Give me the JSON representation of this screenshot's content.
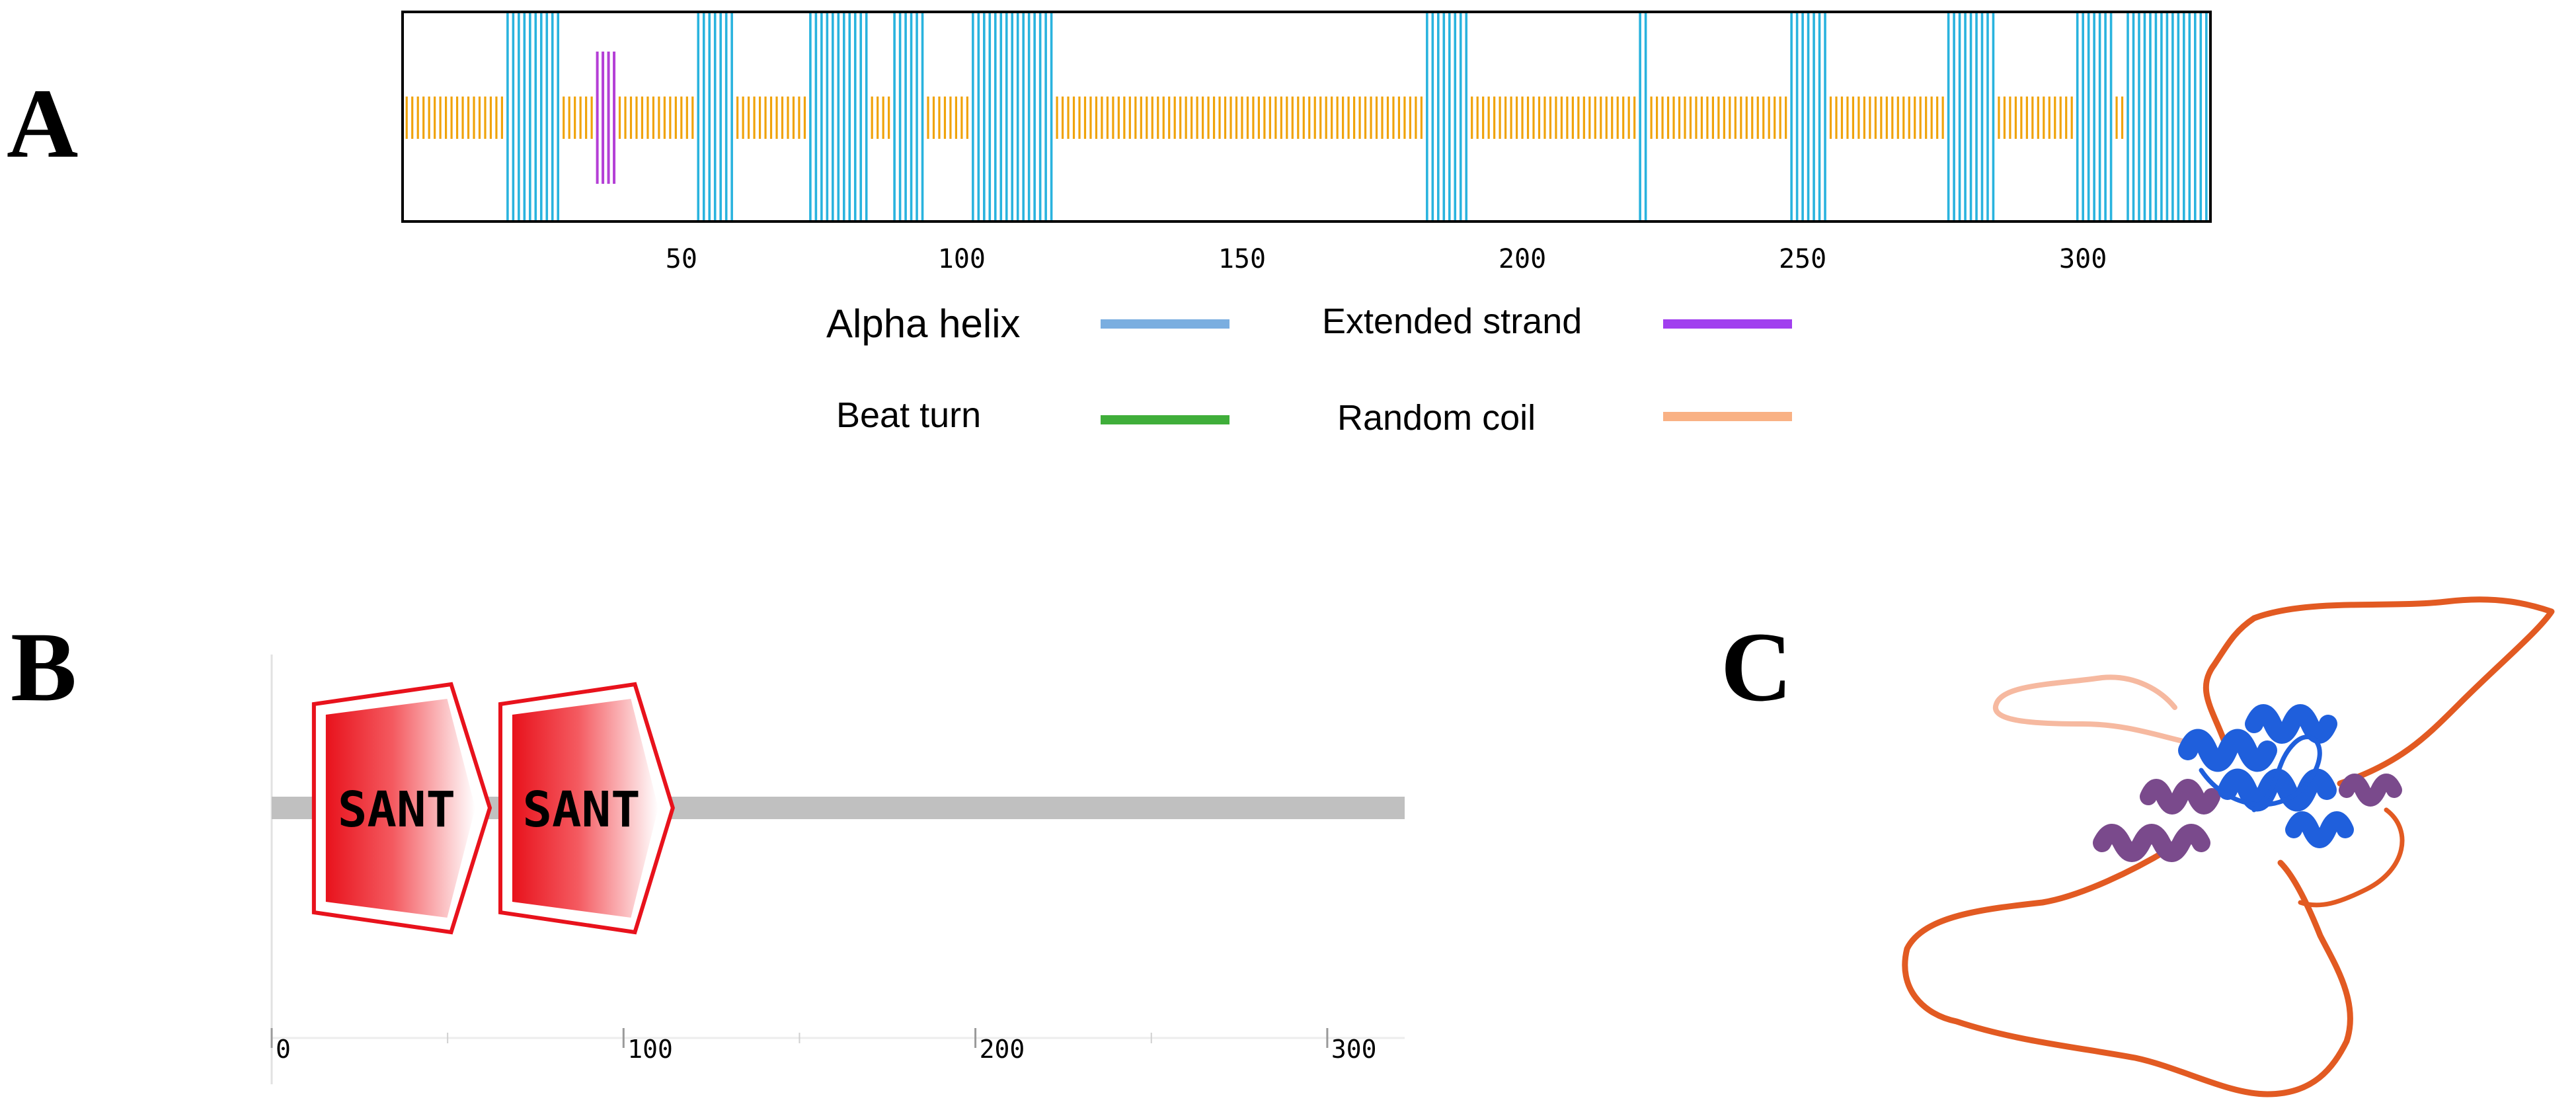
{
  "panels": {
    "a": "A",
    "b": "B",
    "c": "C"
  },
  "secondary_structure": {
    "sequence_length": 322,
    "axis_ticks": [
      50,
      100,
      150,
      200,
      250,
      300
    ],
    "helix_ranges": [
      [
        19,
        28
      ],
      [
        53,
        59
      ],
      [
        73,
        83
      ],
      [
        88,
        93
      ],
      [
        102,
        116
      ],
      [
        183,
        190
      ],
      [
        221,
        222
      ],
      [
        248,
        254
      ],
      [
        276,
        284
      ],
      [
        299,
        305
      ],
      [
        308,
        322
      ]
    ],
    "strand_ranges": [
      [
        35,
        38
      ]
    ],
    "coil_ranges": [
      [
        1,
        18
      ],
      [
        29,
        34
      ],
      [
        39,
        52
      ],
      [
        60,
        72
      ],
      [
        84,
        87
      ],
      [
        94,
        101
      ],
      [
        117,
        182
      ],
      [
        191,
        220
      ],
      [
        223,
        247
      ],
      [
        255,
        275
      ],
      [
        285,
        298
      ],
      [
        306,
        307
      ]
    ],
    "colors": {
      "helix": "#29b3de",
      "strand": "#b43fd6",
      "coil": "#f0a30a"
    }
  },
  "legend": {
    "alpha_helix": {
      "label": "Alpha helix",
      "color": "#7aaee0"
    },
    "extended_strand": {
      "label": "Extended strand",
      "color": "#a13fef"
    },
    "beta_turn": {
      "label": "Beat turn",
      "color": "#3fae3a"
    },
    "random_coil": {
      "label": "Random coil",
      "color": "#f9b184"
    }
  },
  "domains": {
    "sequence_length": 322,
    "axis_ticks": [
      "0",
      "100",
      "200",
      "300"
    ],
    "items": [
      {
        "label": "SANT",
        "start": 12,
        "end": 62
      },
      {
        "label": "SANT",
        "start": 65,
        "end": 114
      }
    ],
    "backbone_color": "#c0c0c0",
    "domain_color": "#e8121c"
  },
  "structure_3d": {
    "colors": {
      "high_confidence": "#1f5fdc",
      "medium_confidence": "#7a4a8c",
      "low_confidence": "#e25a22",
      "very_low_confidence": "#f6b9a0"
    }
  }
}
